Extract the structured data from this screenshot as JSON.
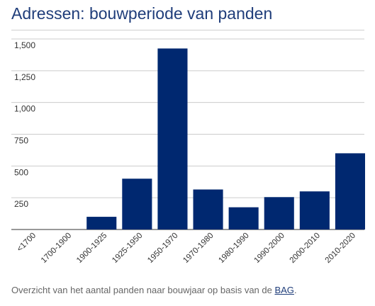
{
  "header": {
    "title": "Adressen: bouwperiode van panden"
  },
  "caption": {
    "text": "Overzicht van het aantal panden naar bouwjaar op basis van de ",
    "link": "BAG",
    "end": "."
  },
  "colors": {
    "bar": "#002870",
    "title": "#1f3d7a",
    "grid": "#cccccc",
    "axis": "#333333"
  },
  "chart_data": {
    "type": "bar",
    "title": "Adressen: bouwperiode van panden",
    "xlabel": "",
    "ylabel": "",
    "categories": [
      "<1700",
      "1700-1900",
      "1900-1925",
      "1925-1950",
      "1950-1970",
      "1970-1980",
      "1980-1990",
      "1990-2000",
      "2000-2010",
      "2010-2020"
    ],
    "values": [
      0,
      0,
      100,
      400,
      1425,
      315,
      175,
      255,
      300,
      600
    ],
    "yticks": [
      250,
      500,
      750,
      1000,
      1250,
      1500
    ],
    "ytick_labels": [
      "250",
      "500",
      "750",
      "1,000",
      "1,250",
      "1,500"
    ],
    "ylim": [
      0,
      1500
    ],
    "grid": true,
    "legend": "none"
  }
}
